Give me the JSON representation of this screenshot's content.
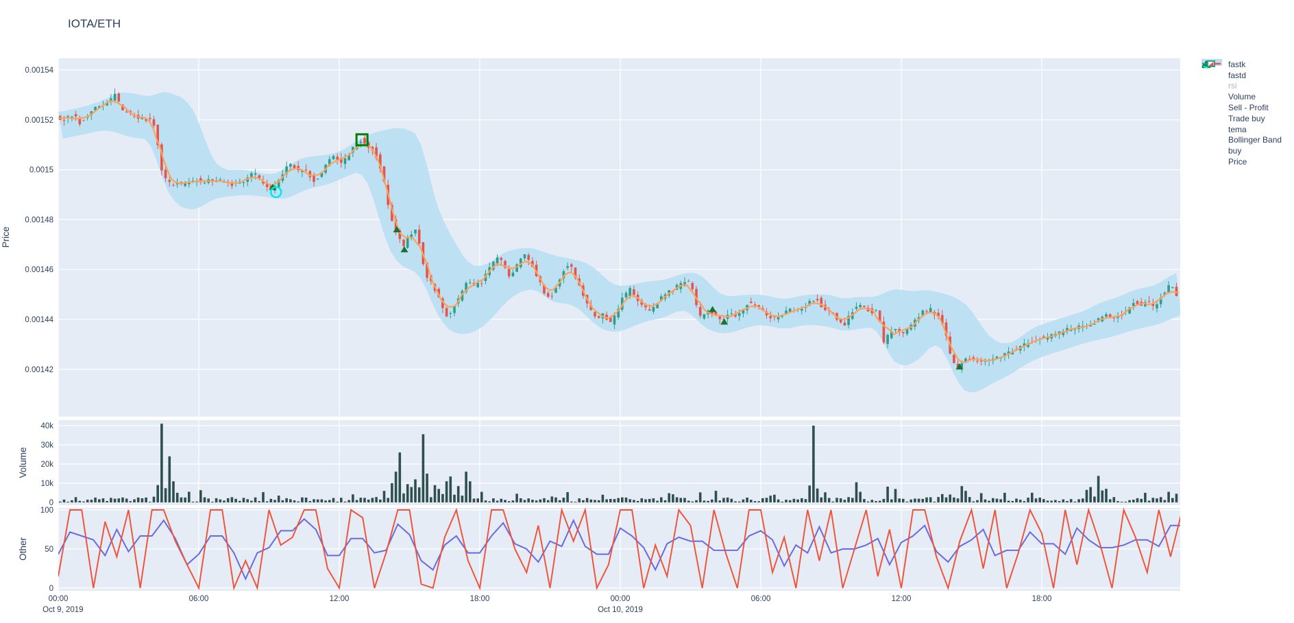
{
  "title": "IOTA/ETH",
  "colors": {
    "paper": "#ffffff",
    "plot_bg": "#E5ECF6",
    "grid": "#ffffff",
    "text": "#2A3F5F",
    "muted_text": "#A9B6C9",
    "candle_up": "#2E9E8C",
    "candle_down": "#E5544B",
    "tema": "#FFA15A",
    "bollinger": "#B8DFF3",
    "volume_bar": "#2F4F4F",
    "fastk": "#EF553B",
    "fastd": "#6A6AE0",
    "rsi": "#FFDDA8",
    "buy_marker": "#1A7431",
    "sell_marker": "#008000",
    "trade_buy_marker": "#00E8E8"
  },
  "legend": {
    "items": [
      {
        "id": "fastk",
        "label": "fastk",
        "type": "line",
        "color": "#EF553B",
        "muted": false
      },
      {
        "id": "fastd",
        "label": "fastd",
        "type": "line",
        "color": "#6A6AE0",
        "muted": false
      },
      {
        "id": "rsi",
        "label": "rsi",
        "type": "line",
        "color": "#FFDDA8",
        "muted": true
      },
      {
        "id": "volume",
        "label": "Volume",
        "type": "square",
        "color": "#2F4F4F",
        "muted": false
      },
      {
        "id": "sell-profit",
        "label": "Sell - Profit",
        "type": "open-square",
        "color": "#008000",
        "muted": false
      },
      {
        "id": "trade-buy",
        "label": "Trade buy",
        "type": "open-circle",
        "color": "#00E8E8",
        "muted": false
      },
      {
        "id": "tema",
        "label": "tema",
        "type": "line",
        "color": "#FFA15A",
        "muted": false
      },
      {
        "id": "bollinger-band",
        "label": "Bollinger Band",
        "type": "band",
        "color": "#B8DFF3",
        "muted": false
      },
      {
        "id": "buy",
        "label": "buy",
        "type": "triangle",
        "color": "#1A7431",
        "muted": false
      },
      {
        "id": "price",
        "label": "Price",
        "type": "candle",
        "color": "#2E9E8C",
        "muted": false
      }
    ]
  },
  "chart_data": {
    "type": "candlestick",
    "pair": "IOTA/ETH",
    "x_start": "Oct 9, 2019 00:00",
    "hours_span": 48,
    "candle_minutes": 10,
    "price_scale": 1e-06,
    "price_path_units_1e6": [
      [
        0,
        1521
      ],
      [
        0.4,
        1520
      ],
      [
        0.7,
        1522
      ],
      [
        1.0,
        1519
      ],
      [
        1.3,
        1521
      ],
      [
        1.6,
        1524
      ],
      [
        1.9,
        1526
      ],
      [
        2.2,
        1527
      ],
      [
        2.5,
        1530
      ],
      [
        2.7,
        1526
      ],
      [
        2.9,
        1523
      ],
      [
        3.2,
        1522
      ],
      [
        3.5,
        1521
      ],
      [
        3.8,
        1520
      ],
      [
        4.1,
        1521
      ],
      [
        4.3,
        1512
      ],
      [
        4.5,
        1500
      ],
      [
        4.7,
        1496
      ],
      [
        4.9,
        1494
      ],
      [
        5.1,
        1495
      ],
      [
        5.4,
        1494
      ],
      [
        5.9,
        1496
      ],
      [
        6.3,
        1495
      ],
      [
        6.7,
        1496
      ],
      [
        7.2,
        1495
      ],
      [
        7.6,
        1494
      ],
      [
        8.1,
        1496
      ],
      [
        8.35,
        1499
      ],
      [
        8.6,
        1497
      ],
      [
        8.9,
        1494
      ],
      [
        9.15,
        1492
      ],
      [
        9.4,
        1494
      ],
      [
        9.7,
        1499
      ],
      [
        9.95,
        1502
      ],
      [
        10.2,
        1501
      ],
      [
        10.4,
        1499
      ],
      [
        10.6,
        1500
      ],
      [
        10.85,
        1497
      ],
      [
        11.05,
        1495
      ],
      [
        11.3,
        1499
      ],
      [
        11.6,
        1503
      ],
      [
        11.85,
        1505
      ],
      [
        12.15,
        1503
      ],
      [
        12.4,
        1505
      ],
      [
        12.6,
        1508
      ],
      [
        12.8,
        1510
      ],
      [
        13.0,
        1512
      ],
      [
        13.2,
        1510
      ],
      [
        13.45,
        1509
      ],
      [
        13.65,
        1506
      ],
      [
        13.85,
        1500
      ],
      [
        14.05,
        1493
      ],
      [
        14.25,
        1482
      ],
      [
        14.5,
        1475
      ],
      [
        14.8,
        1469
      ],
      [
        15.0,
        1472
      ],
      [
        15.2,
        1475
      ],
      [
        15.4,
        1477
      ],
      [
        15.6,
        1464
      ],
      [
        15.8,
        1458
      ],
      [
        16.1,
        1453
      ],
      [
        16.4,
        1447
      ],
      [
        16.7,
        1441
      ],
      [
        17.0,
        1446
      ],
      [
        17.3,
        1450
      ],
      [
        17.55,
        1456
      ],
      [
        17.85,
        1453
      ],
      [
        18.15,
        1455
      ],
      [
        18.45,
        1460
      ],
      [
        18.75,
        1464
      ],
      [
        19.0,
        1464
      ],
      [
        19.3,
        1457
      ],
      [
        19.6,
        1460
      ],
      [
        19.9,
        1466
      ],
      [
        20.2,
        1464
      ],
      [
        20.5,
        1458
      ],
      [
        20.8,
        1451
      ],
      [
        21.1,
        1449
      ],
      [
        21.35,
        1453
      ],
      [
        21.65,
        1460
      ],
      [
        21.95,
        1462
      ],
      [
        22.25,
        1455
      ],
      [
        22.55,
        1448
      ],
      [
        22.85,
        1443
      ],
      [
        23.1,
        1441
      ],
      [
        23.4,
        1442
      ],
      [
        23.65,
        1438
      ],
      [
        23.85,
        1441
      ],
      [
        24.15,
        1448
      ],
      [
        24.5,
        1452
      ],
      [
        24.9,
        1447
      ],
      [
        25.3,
        1443
      ],
      [
        25.75,
        1448
      ],
      [
        26.15,
        1451
      ],
      [
        26.5,
        1453
      ],
      [
        26.8,
        1455
      ],
      [
        27.1,
        1455
      ],
      [
        27.3,
        1446
      ],
      [
        27.5,
        1441
      ],
      [
        27.8,
        1444
      ],
      [
        28.1,
        1442
      ],
      [
        28.4,
        1439
      ],
      [
        28.7,
        1443
      ],
      [
        29.0,
        1441
      ],
      [
        29.3,
        1444
      ],
      [
        29.55,
        1447
      ],
      [
        29.85,
        1445
      ],
      [
        30.15,
        1444
      ],
      [
        30.45,
        1441
      ],
      [
        30.75,
        1440
      ],
      [
        31.0,
        1442
      ],
      [
        31.3,
        1444
      ],
      [
        31.6,
        1443
      ],
      [
        31.9,
        1445
      ],
      [
        32.2,
        1447
      ],
      [
        32.5,
        1448
      ],
      [
        32.8,
        1444
      ],
      [
        33.1,
        1443
      ],
      [
        33.35,
        1440
      ],
      [
        33.65,
        1437
      ],
      [
        33.95,
        1443
      ],
      [
        34.25,
        1446
      ],
      [
        34.55,
        1444
      ],
      [
        34.85,
        1443
      ],
      [
        35.1,
        1443
      ],
      [
        35.35,
        1430
      ],
      [
        35.55,
        1434
      ],
      [
        35.85,
        1437
      ],
      [
        36.15,
        1434
      ],
      [
        36.45,
        1437
      ],
      [
        36.75,
        1440
      ],
      [
        37.0,
        1443
      ],
      [
        37.3,
        1444
      ],
      [
        37.6,
        1442
      ],
      [
        37.9,
        1438
      ],
      [
        38.2,
        1425
      ],
      [
        38.45,
        1419
      ],
      [
        38.65,
        1423
      ],
      [
        38.95,
        1425
      ],
      [
        39.2,
        1424
      ],
      [
        39.65,
        1423
      ],
      [
        40.1,
        1424
      ],
      [
        40.55,
        1426
      ],
      [
        41.0,
        1428
      ],
      [
        41.4,
        1430
      ],
      [
        41.85,
        1432
      ],
      [
        42.3,
        1433
      ],
      [
        42.75,
        1434
      ],
      [
        43.15,
        1436
      ],
      [
        43.6,
        1437
      ],
      [
        44.05,
        1437
      ],
      [
        44.5,
        1440
      ],
      [
        44.8,
        1442
      ],
      [
        45.05,
        1440
      ],
      [
        45.35,
        1441
      ],
      [
        45.8,
        1444
      ],
      [
        46.05,
        1448
      ],
      [
        46.25,
        1445
      ],
      [
        46.55,
        1447
      ],
      [
        46.85,
        1445
      ],
      [
        47.1,
        1448
      ],
      [
        47.4,
        1452
      ],
      [
        47.6,
        1454
      ],
      [
        47.8,
        1450
      ],
      [
        47.95,
        1449
      ]
    ],
    "bollinger_units_1e6": [
      [
        0,
        1512,
        1523
      ],
      [
        1,
        1514,
        1525
      ],
      [
        2,
        1516,
        1528
      ],
      [
        2.5,
        1515,
        1531
      ],
      [
        3,
        1513,
        1531
      ],
      [
        4,
        1512,
        1529
      ],
      [
        4.4,
        1496,
        1532
      ],
      [
        5,
        1486,
        1530
      ],
      [
        5.5,
        1484,
        1528
      ],
      [
        6,
        1484,
        1520
      ],
      [
        6.5,
        1488,
        1505
      ],
      [
        7,
        1489,
        1500
      ],
      [
        8,
        1490,
        1500
      ],
      [
        9,
        1489,
        1498
      ],
      [
        9.5,
        1488,
        1499
      ],
      [
        10,
        1489,
        1503
      ],
      [
        10.5,
        1492,
        1505
      ],
      [
        11.5,
        1494,
        1506
      ],
      [
        12,
        1496,
        1507
      ],
      [
        12.5,
        1498,
        1510
      ],
      [
        13,
        1500,
        1513
      ],
      [
        13.5,
        1488,
        1515
      ],
      [
        14,
        1470,
        1516
      ],
      [
        14.5,
        1462,
        1517
      ],
      [
        15,
        1460,
        1516
      ],
      [
        15.5,
        1458,
        1513
      ],
      [
        16,
        1445,
        1490
      ],
      [
        16.5,
        1437,
        1478
      ],
      [
        17,
        1434,
        1470
      ],
      [
        17.5,
        1434,
        1462
      ],
      [
        18,
        1436,
        1461
      ],
      [
        18.5,
        1440,
        1463
      ],
      [
        19,
        1446,
        1467
      ],
      [
        19.5,
        1450,
        1468
      ],
      [
        20,
        1452,
        1469
      ],
      [
        20.5,
        1452,
        1468
      ],
      [
        21,
        1447,
        1466
      ],
      [
        22,
        1446,
        1464
      ],
      [
        22.5,
        1442,
        1463
      ],
      [
        23,
        1437,
        1460
      ],
      [
        23.5,
        1435,
        1455
      ],
      [
        24,
        1435,
        1453
      ],
      [
        25,
        1439,
        1455
      ],
      [
        26,
        1441,
        1456
      ],
      [
        26.5,
        1444,
        1458
      ],
      [
        27,
        1443,
        1459
      ],
      [
        27.5,
        1437,
        1458
      ],
      [
        28,
        1435,
        1452
      ],
      [
        28.5,
        1434,
        1449
      ],
      [
        29.5,
        1437,
        1450
      ],
      [
        30,
        1438,
        1450
      ],
      [
        31,
        1436,
        1448
      ],
      [
        32,
        1438,
        1450
      ],
      [
        33,
        1437,
        1450
      ],
      [
        33.5,
        1435,
        1448
      ],
      [
        34,
        1436,
        1449
      ],
      [
        35,
        1437,
        1449
      ],
      [
        35.5,
        1424,
        1452
      ],
      [
        36,
        1421,
        1452
      ],
      [
        36.5,
        1422,
        1451
      ],
      [
        37,
        1426,
        1452
      ],
      [
        37.5,
        1432,
        1451
      ],
      [
        38,
        1424,
        1450
      ],
      [
        38.5,
        1412,
        1448
      ],
      [
        39,
        1410,
        1444
      ],
      [
        39.5,
        1412,
        1436
      ],
      [
        40,
        1415,
        1431
      ],
      [
        40.5,
        1417,
        1430
      ],
      [
        41,
        1420,
        1432
      ],
      [
        41.5,
        1423,
        1436
      ],
      [
        42,
        1425,
        1438
      ],
      [
        43,
        1428,
        1441
      ],
      [
        44,
        1431,
        1444
      ],
      [
        44.5,
        1432,
        1447
      ],
      [
        45,
        1433,
        1448
      ],
      [
        46,
        1436,
        1452
      ],
      [
        47,
        1438,
        1454
      ],
      [
        47.5,
        1440,
        1458
      ],
      [
        47.95,
        1442,
        1459
      ]
    ],
    "tema_source": "smoothed price_path_units_1e6",
    "volume_spikes": [
      [
        4.33,
        41000
      ],
      [
        4.62,
        24000
      ],
      [
        4.85,
        11000
      ],
      [
        5.05,
        5000
      ],
      [
        13.9,
        6000
      ],
      [
        14.15,
        10000
      ],
      [
        14.35,
        16000
      ],
      [
        14.55,
        26000
      ],
      [
        14.75,
        9500
      ],
      [
        15.0,
        8000
      ],
      [
        15.2,
        12000
      ],
      [
        15.5,
        35500
      ],
      [
        15.7,
        15000
      ],
      [
        15.95,
        9000
      ],
      [
        16.2,
        7000
      ],
      [
        16.45,
        11000
      ],
      [
        16.7,
        13500
      ],
      [
        17.0,
        8500
      ],
      [
        17.35,
        16000
      ],
      [
        17.55,
        11000
      ],
      [
        17.95,
        5500
      ],
      [
        19.5,
        4500
      ],
      [
        23.2,
        4000
      ],
      [
        26.1,
        4200
      ],
      [
        27.35,
        5200
      ],
      [
        32.1,
        40000
      ],
      [
        32.35,
        4500
      ],
      [
        33.95,
        10500
      ],
      [
        34.2,
        5500
      ],
      [
        35.4,
        8200
      ],
      [
        35.6,
        7000
      ],
      [
        38.45,
        8500
      ],
      [
        38.7,
        6000
      ],
      [
        40.3,
        5000
      ],
      [
        43.8,
        6500
      ],
      [
        44.05,
        8000
      ],
      [
        44.25,
        13800
      ],
      [
        44.5,
        6200
      ],
      [
        46.3,
        5000
      ],
      [
        47.35,
        5500
      ],
      [
        47.6,
        4500
      ]
    ],
    "volume_base_range": [
      300,
      2800
    ],
    "fastk_step_hours": 0.5,
    "fastk": [
      15,
      100,
      100,
      0,
      85,
      40,
      100,
      0,
      100,
      100,
      60,
      30,
      0,
      100,
      100,
      0,
      35,
      0,
      100,
      55,
      65,
      100,
      100,
      25,
      0,
      100,
      90,
      0,
      45,
      100,
      100,
      5,
      0,
      65,
      100,
      35,
      0,
      100,
      100,
      50,
      20,
      80,
      0,
      100,
      60,
      100,
      0,
      30,
      100,
      100,
      0,
      55,
      15,
      100,
      80,
      0,
      100,
      45,
      0,
      100,
      100,
      20,
      65,
      0,
      100,
      35,
      100,
      0,
      50,
      100,
      15,
      75,
      0,
      100,
      100,
      40,
      0,
      60,
      100,
      25,
      100,
      0,
      45,
      100,
      70,
      0,
      100,
      30,
      100,
      55,
      0,
      100,
      65,
      20,
      100,
      40,
      100
    ],
    "fastd_source": "sma3(fastk)",
    "rsi_visible": false,
    "markers": {
      "buy_units_1e6": [
        [
          9.16,
          1493
        ],
        [
          14.46,
          1476
        ],
        [
          14.78,
          1468
        ],
        [
          27.94,
          1444
        ],
        [
          28.44,
          1439
        ],
        [
          38.49,
          1421
        ]
      ],
      "sell_profit_units_1e6": [
        [
          12.97,
          1512
        ]
      ],
      "trade_buy_units_1e6": [
        [
          9.3,
          1491
        ]
      ]
    },
    "axes": {
      "x": {
        "ticks": [
          [
            "00:00",
            0
          ],
          [
            "06:00",
            6
          ],
          [
            "12:00",
            12
          ],
          [
            "18:00",
            18
          ],
          [
            "00:00",
            24
          ],
          [
            "06:00",
            30
          ],
          [
            "12:00",
            36
          ],
          [
            "18:00",
            42
          ]
        ],
        "dates": [
          [
            "Oct 9, 2019",
            0.2
          ],
          [
            "Oct 10, 2019",
            24
          ]
        ]
      },
      "price": {
        "title": "Price",
        "ticks": [
          [
            "0.00154",
            1540
          ],
          [
            "0.00152",
            1520
          ],
          [
            "0.0015",
            1500
          ],
          [
            "0.00148",
            1480
          ],
          [
            "0.00146",
            1460
          ],
          [
            "0.00144",
            1440
          ],
          [
            "0.00142",
            1420
          ]
        ],
        "range_units_1e6": [
          1401,
          1545
        ]
      },
      "volume": {
        "title": "Volume",
        "ticks": [
          [
            "40k",
            40000
          ],
          [
            "30k",
            30000
          ],
          [
            "20k",
            20000
          ],
          [
            "10k",
            10000
          ],
          [
            "0",
            0
          ]
        ],
        "range": [
          0,
          43000
        ]
      },
      "other": {
        "title": "Other",
        "ticks": [
          [
            "100",
            100
          ],
          [
            "50",
            50
          ],
          [
            "0",
            0
          ]
        ],
        "range": [
          0,
          100
        ]
      }
    }
  }
}
